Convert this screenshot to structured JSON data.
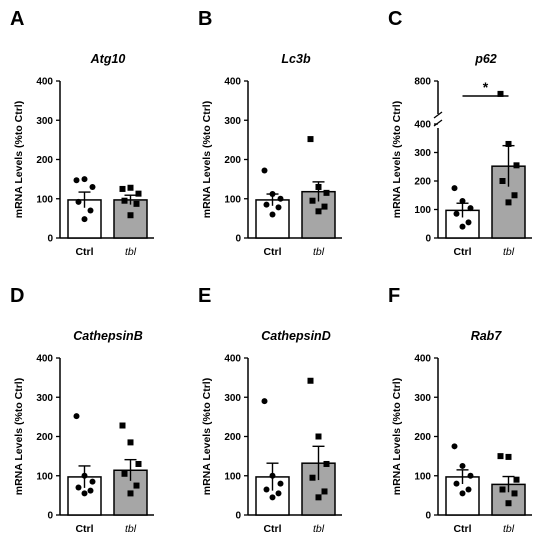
{
  "chart_data": [
    {
      "panel": "A",
      "type": "bar",
      "title": "Atg10",
      "ylabel": "mRNA Levels (%to Ctrl)",
      "ylim": [
        0,
        400
      ],
      "yticks": [
        "0",
        "100",
        "200",
        "300",
        "400"
      ],
      "categories": [
        "Ctrl",
        "tbl"
      ],
      "values": [
        97,
        97
      ],
      "sem": [
        20,
        12
      ],
      "bar_colors": [
        "#ffffff",
        "#a6a6a6"
      ],
      "points": [
        [
          147,
          150,
          130,
          92,
          70,
          48
        ],
        [
          125,
          128,
          113,
          95,
          87,
          58
        ]
      ]
    },
    {
      "panel": "B",
      "type": "bar",
      "title": "Lc3b",
      "ylabel": "mRNA Levels (%to Ctrl)",
      "ylim": [
        0,
        400
      ],
      "yticks": [
        "0",
        "100",
        "200",
        "300",
        "400"
      ],
      "categories": [
        "Ctrl",
        "tbl"
      ],
      "values": [
        97,
        118
      ],
      "sem": [
        15,
        25
      ],
      "bar_colors": [
        "#ffffff",
        "#a6a6a6"
      ],
      "points": [
        [
          172,
          112,
          100,
          85,
          78,
          60
        ],
        [
          252,
          130,
          115,
          95,
          80,
          68
        ]
      ]
    },
    {
      "panel": "C",
      "type": "bar",
      "title": "p62",
      "ylabel": "mRNA Levels (%to Ctrl)",
      "ylim": [
        0,
        800
      ],
      "axis_break": [
        400,
        800
      ],
      "yticks": [
        "0",
        "100",
        "200",
        "300",
        "400",
        "800"
      ],
      "categories": [
        "Ctrl",
        "tbl"
      ],
      "values": [
        97,
        252
      ],
      "sem": [
        25,
        72
      ],
      "bar_colors": [
        "#ffffff",
        "#a6a6a6"
      ],
      "points": [
        [
          175,
          130,
          105,
          85,
          55,
          40
        ],
        [
          680,
          330,
          255,
          200,
          150,
          125
        ]
      ],
      "significance": "*"
    },
    {
      "panel": "D",
      "type": "bar",
      "title": "CathepsinB",
      "ylabel": "mRNA Levels (%to Ctrl)",
      "ylim": [
        0,
        400
      ],
      "yticks": [
        "0",
        "100",
        "200",
        "300",
        "400"
      ],
      "categories": [
        "Ctrl",
        "tbl"
      ],
      "values": [
        97,
        114
      ],
      "sem": [
        28,
        27
      ],
      "bar_colors": [
        "#ffffff",
        "#a6a6a6"
      ],
      "points": [
        [
          252,
          100,
          85,
          70,
          62,
          55
        ],
        [
          228,
          185,
          130,
          105,
          75,
          55
        ]
      ]
    },
    {
      "panel": "E",
      "type": "bar",
      "title": "CathepsinD",
      "ylabel": "mRNA Levels (%to Ctrl)",
      "ylim": [
        0,
        400
      ],
      "yticks": [
        "0",
        "100",
        "200",
        "300",
        "400"
      ],
      "categories": [
        "Ctrl",
        "tbl"
      ],
      "values": [
        97,
        132
      ],
      "sem": [
        35,
        43
      ],
      "bar_colors": [
        "#ffffff",
        "#a6a6a6"
      ],
      "points": [
        [
          290,
          100,
          80,
          65,
          55,
          45
        ],
        [
          342,
          200,
          130,
          95,
          60,
          45
        ]
      ]
    },
    {
      "panel": "F",
      "type": "bar",
      "title": "Rab7",
      "ylabel": "mRNA Levels (%to Ctrl)",
      "ylim": [
        0,
        400
      ],
      "yticks": [
        "0",
        "100",
        "200",
        "300",
        "400"
      ],
      "categories": [
        "Ctrl",
        "tbl"
      ],
      "values": [
        97,
        78
      ],
      "sem": [
        18,
        20
      ],
      "bar_colors": [
        "#ffffff",
        "#a6a6a6"
      ],
      "points": [
        [
          175,
          125,
          100,
          80,
          65,
          55
        ],
        [
          150,
          148,
          90,
          65,
          55,
          30
        ]
      ]
    }
  ]
}
